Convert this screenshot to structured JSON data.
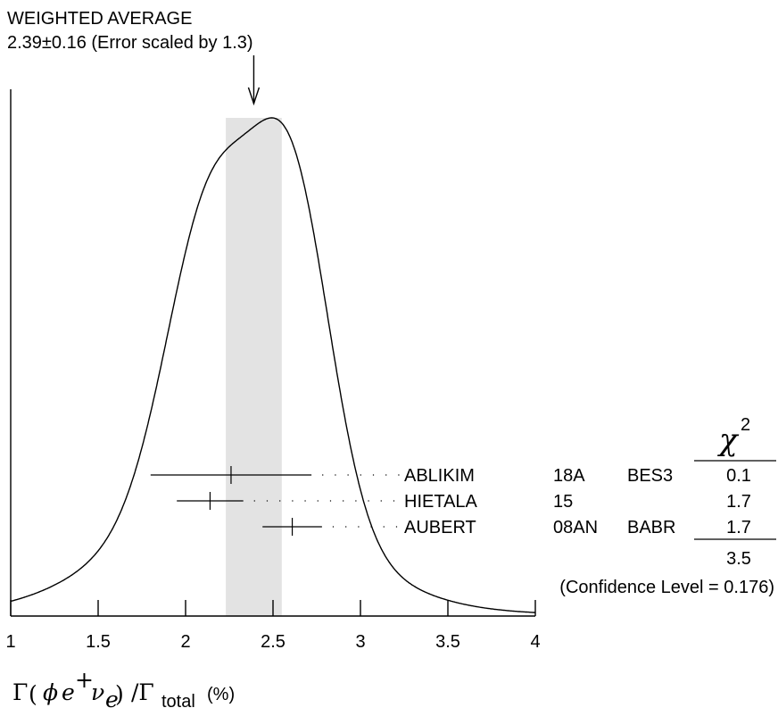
{
  "chart_data": {
    "type": "ideogram",
    "average": {
      "title": "WEIGHTED AVERAGE",
      "text": "2.39±0.16 (Error scaled by 1.3)",
      "value": 2.39,
      "error": 0.16,
      "band": [
        2.23,
        2.55
      ]
    },
    "xlim": [
      1,
      4
    ],
    "xticks": [
      1,
      1.5,
      2,
      2.5,
      3,
      3.5,
      4
    ],
    "xtick_labels": [
      "1",
      "1.5",
      "2",
      "2.5",
      "3",
      "3.5",
      "4"
    ],
    "xlabel": {
      "gamma": "Γ",
      "phi": "ϕ",
      "e": "e",
      "plus": "+",
      "nu": "ν",
      "nu_sub": "e",
      "slash_gamma": "/Γ",
      "total": "total",
      "unit": "(%)"
    },
    "measurements": [
      {
        "author": "ABLIKIM",
        "year": "18A",
        "experiment": "BES3",
        "value": 2.26,
        "error_low": 0.46,
        "error_high": 0.46,
        "chi2": "0.1"
      },
      {
        "author": "HIETALA",
        "year": "15",
        "experiment": "",
        "value": 2.14,
        "error_low": 0.19,
        "error_high": 0.19,
        "chi2": "1.7"
      },
      {
        "author": "AUBERT",
        "year": "08AN",
        "experiment": "BABR",
        "value": 2.61,
        "error_low": 0.17,
        "error_high": 0.17,
        "chi2": "1.7"
      }
    ],
    "chi2_header": "χ",
    "chi2_power": "2",
    "chi2_total": "3.5",
    "confidence_text": "(Confidence Level = 0.176)"
  }
}
